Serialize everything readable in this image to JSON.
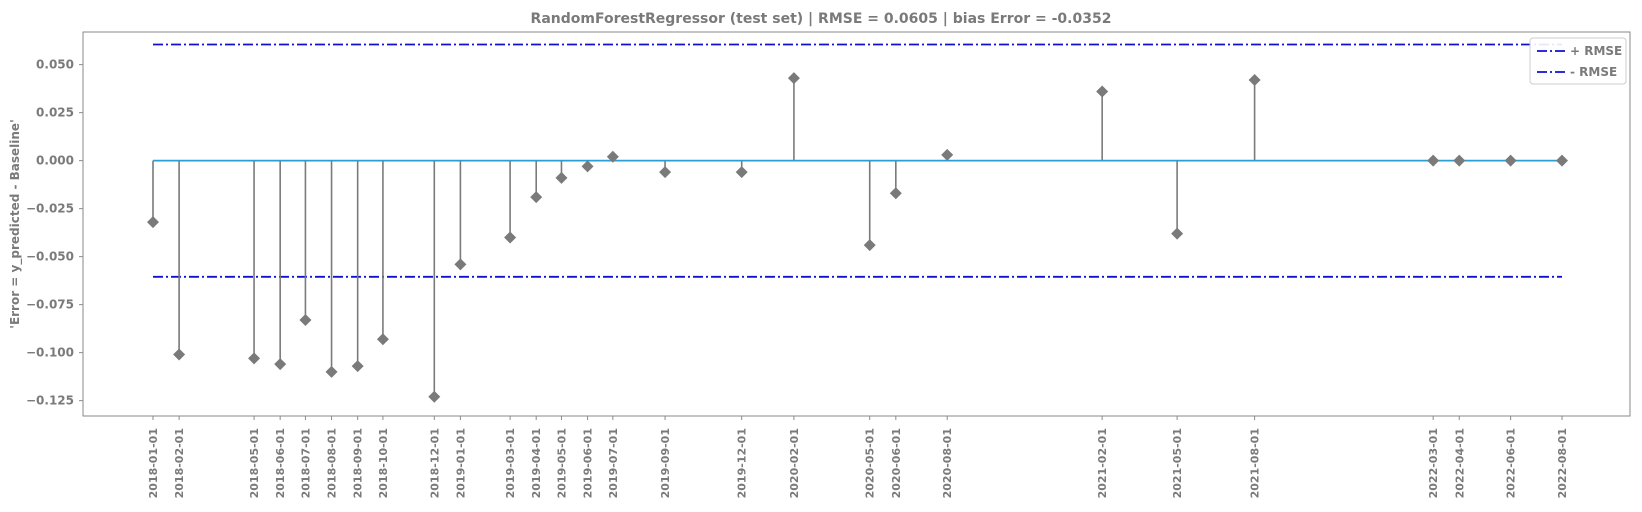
{
  "chart_data": {
    "type": "stem",
    "title": "RandomForestRegressor (test set) | RMSE = 0.0605 | bias Error = -0.0352",
    "xlabel": "",
    "ylabel": "'Error = y_predicted - Baseline'",
    "ylim": [
      -0.133,
      0.067
    ],
    "yticks": [
      0.05,
      0.025,
      0.0,
      -0.025,
      -0.05,
      -0.075,
      -0.1,
      -0.125
    ],
    "ytick_labels": [
      "0.050",
      "0.025",
      "0.000",
      "−0.025",
      "−0.050",
      "−0.075",
      "−0.100",
      "−0.125"
    ],
    "x": [
      "2018-01-01",
      "2018-02-01",
      "2018-05-01",
      "2018-06-01",
      "2018-07-01",
      "2018-08-01",
      "2018-09-01",
      "2018-10-01",
      "2018-12-01",
      "2019-01-01",
      "2019-03-01",
      "2019-04-01",
      "2019-05-01",
      "2019-06-01",
      "2019-07-01",
      "2019-09-01",
      "2019-12-01",
      "2020-02-01",
      "2020-05-01",
      "2020-06-01",
      "2020-08-01",
      "2021-02-01",
      "2021-05-01",
      "2021-08-01",
      "2022-03-01",
      "2022-04-01",
      "2022-06-01",
      "2022-08-01"
    ],
    "values": [
      -0.032,
      -0.101,
      -0.103,
      -0.106,
      -0.083,
      -0.11,
      -0.107,
      -0.093,
      -0.123,
      -0.054,
      -0.04,
      -0.019,
      -0.009,
      -0.003,
      0.002,
      -0.006,
      -0.006,
      0.043,
      -0.044,
      -0.017,
      0.003,
      0.036,
      -0.038,
      0.042,
      0.0,
      0.0,
      0.0,
      0.0
    ],
    "baseline": 0.0,
    "rmse": 0.0605,
    "legend": {
      "position": "top-right",
      "entries": [
        {
          "label": "+ RMSE",
          "color": "#1010d0"
        },
        {
          "label": "- RMSE",
          "color": "#1010d0"
        }
      ]
    },
    "colors": {
      "stem": "#7a7a7a",
      "marker": "#7a7a7a",
      "baseline": "#2a9fd6",
      "rmse": "#1010d0",
      "text": "#7a7a7a"
    },
    "grid": false
  }
}
